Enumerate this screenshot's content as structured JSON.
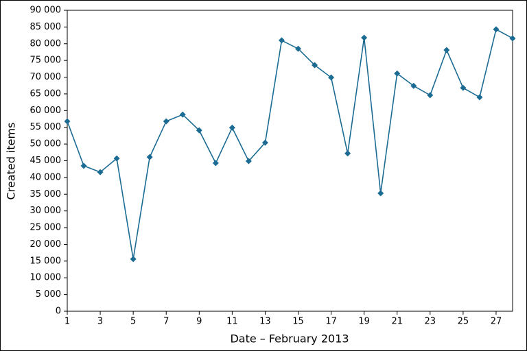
{
  "chart_data": {
    "type": "line",
    "x_label": "Date – February 2013",
    "y_label": "Created items",
    "x": [
      1,
      2,
      3,
      4,
      5,
      6,
      7,
      8,
      9,
      10,
      11,
      12,
      13,
      14,
      15,
      16,
      17,
      18,
      19,
      20,
      21,
      22,
      23,
      24,
      25,
      26,
      27,
      28
    ],
    "values": [
      56800,
      43500,
      41600,
      45700,
      15600,
      46100,
      56800,
      58800,
      54100,
      44300,
      54900,
      44900,
      50400,
      81000,
      78500,
      73600,
      69900,
      47200,
      81800,
      35300,
      71100,
      67400,
      64600,
      78100,
      66800,
      64000,
      84300,
      81600
    ],
    "color": "#1b6b93",
    "marker": "diamond",
    "xlim": [
      1,
      28
    ],
    "xticks": [
      1,
      3,
      5,
      7,
      9,
      11,
      13,
      15,
      17,
      19,
      21,
      23,
      25,
      27
    ],
    "ylim": [
      0,
      90000
    ],
    "yticks": [
      0,
      {
        "value": 5000,
        "label": "5 000"
      },
      {
        "value": 10000,
        "label": "10 000"
      },
      {
        "value": 15000,
        "label": "15 000"
      },
      {
        "value": 20000,
        "label": "20 000"
      },
      {
        "value": 25000,
        "label": "25 000"
      },
      {
        "value": 30000,
        "label": "30 000"
      },
      {
        "value": 35000,
        "label": "35 000"
      },
      {
        "value": 40000,
        "label": "40 000"
      },
      {
        "value": 45000,
        "label": "45 000"
      },
      {
        "value": 50000,
        "label": "50 000"
      },
      {
        "value": 55000,
        "label": "55 000"
      },
      {
        "value": 60000,
        "label": "60 000"
      },
      {
        "value": 65000,
        "label": "65 000"
      },
      {
        "value": 70000,
        "label": "70 000"
      },
      {
        "value": 75000,
        "label": "75 000"
      },
      {
        "value": 80000,
        "label": "80 000"
      },
      {
        "value": 85000,
        "label": "85 000"
      },
      {
        "value": 90000,
        "label": "90 000"
      }
    ],
    "grid": false
  }
}
